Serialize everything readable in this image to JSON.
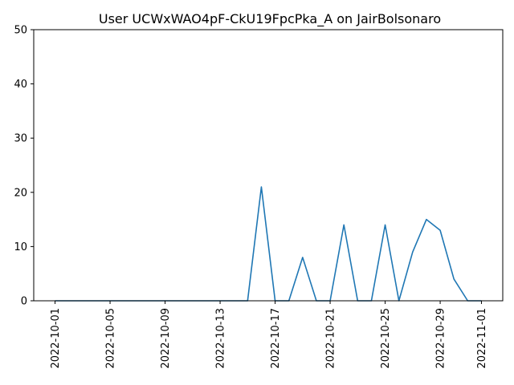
{
  "chart_data": {
    "type": "line",
    "title": "User UCWxWAO4pF-CkU19FpcPka_A on JairBolsonaro",
    "xlabel": "",
    "ylabel": "",
    "ylim": [
      0,
      50
    ],
    "y_ticks": [
      0,
      10,
      20,
      30,
      40,
      50
    ],
    "x_tick_labels": [
      "2022-10-01",
      "2022-10-05",
      "2022-10-09",
      "2022-10-13",
      "2022-10-17",
      "2022-10-21",
      "2022-10-25",
      "2022-10-29",
      "2022-11-01"
    ],
    "grid": false,
    "line_color": "#1f77b4",
    "series": [
      {
        "x": [
          "2022-10-01",
          "2022-10-02",
          "2022-10-03",
          "2022-10-04",
          "2022-10-05",
          "2022-10-06",
          "2022-10-07",
          "2022-10-08",
          "2022-10-09",
          "2022-10-10",
          "2022-10-11",
          "2022-10-12",
          "2022-10-13",
          "2022-10-14",
          "2022-10-15",
          "2022-10-16",
          "2022-10-17",
          "2022-10-18",
          "2022-10-19",
          "2022-10-20",
          "2022-10-21",
          "2022-10-22",
          "2022-10-23",
          "2022-10-24",
          "2022-10-25",
          "2022-10-26",
          "2022-10-27",
          "2022-10-28",
          "2022-10-29",
          "2022-10-30",
          "2022-10-31",
          "2022-11-01"
        ],
        "values": [
          0,
          0,
          0,
          0,
          0,
          0,
          0,
          0,
          0,
          0,
          0,
          0,
          0,
          0,
          0,
          21,
          0,
          0,
          8,
          0,
          0,
          14,
          0,
          0,
          14,
          0,
          9,
          15,
          13,
          4,
          0,
          0
        ]
      }
    ]
  }
}
